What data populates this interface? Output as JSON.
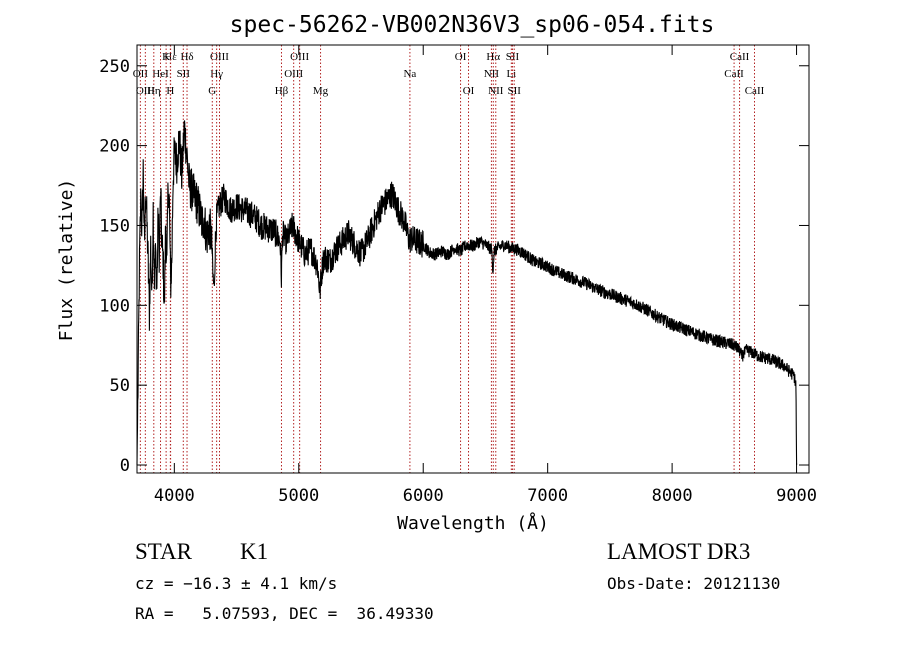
{
  "chart_data": {
    "type": "line",
    "title": "spec-56262-VB002N36V3_sp06-054.fits",
    "xlabel": "Wavelength (Å)",
    "ylabel": "Flux (relative)",
    "xlim": [
      3700,
      9100
    ],
    "ylim": [
      -5,
      263
    ],
    "xticks": [
      4000,
      5000,
      6000,
      7000,
      8000,
      9000
    ],
    "yticks": [
      0,
      50,
      100,
      150,
      200,
      250
    ],
    "xtick_labels": [
      "4000",
      "5000",
      "6000",
      "7000",
      "8000",
      "9000"
    ],
    "ytick_labels": [
      "0",
      "50",
      "100",
      "150",
      "200",
      "250"
    ],
    "series": [
      {
        "name": "flux",
        "x": [
          3700,
          3710,
          3720,
          3730,
          3740,
          3750,
          3760,
          3770,
          3780,
          3790,
          3800,
          3810,
          3820,
          3830,
          3840,
          3850,
          3860,
          3870,
          3880,
          3890,
          3900,
          3910,
          3920,
          3930,
          3940,
          3950,
          3960,
          3970,
          3980,
          3990,
          4000,
          4020,
          4040,
          4060,
          4080,
          4100,
          4120,
          4140,
          4160,
          4180,
          4200,
          4220,
          4240,
          4260,
          4280,
          4300,
          4310,
          4320,
          4330,
          4340,
          4360,
          4380,
          4400,
          4450,
          4500,
          4550,
          4600,
          4650,
          4700,
          4750,
          4800,
          4850,
          4860,
          4870,
          4900,
          4950,
          5000,
          5050,
          5100,
          5150,
          5170,
          5180,
          5200,
          5250,
          5300,
          5350,
          5400,
          5450,
          5500,
          5550,
          5600,
          5650,
          5700,
          5750,
          5800,
          5850,
          5890,
          5900,
          5950,
          6000,
          6050,
          6100,
          6150,
          6200,
          6250,
          6300,
          6350,
          6400,
          6450,
          6500,
          6550,
          6560,
          6570,
          6600,
          6650,
          6700,
          6750,
          6800,
          6850,
          6900,
          6950,
          7000,
          7100,
          7200,
          7300,
          7400,
          7500,
          7600,
          7700,
          7800,
          7900,
          8000,
          8100,
          8200,
          8300,
          8400,
          8500,
          8540,
          8560,
          8600,
          8650,
          8700,
          8750,
          8800,
          8850,
          8900,
          8950,
          8980,
          8995,
          9000
        ],
        "y": [
          0,
          60,
          125,
          165,
          148,
          185,
          135,
          175,
          150,
          125,
          95,
          138,
          105,
          160,
          118,
          132,
          110,
          158,
          128,
          172,
          138,
          128,
          96,
          152,
          122,
          178,
          162,
          112,
          128,
          180,
          195,
          190,
          205,
          180,
          212,
          195,
          175,
          172,
          168,
          165,
          160,
          152,
          155,
          142,
          150,
          142,
          118,
          110,
          140,
          155,
          162,
          165,
          168,
          160,
          162,
          160,
          158,
          155,
          150,
          148,
          147,
          140,
          118,
          145,
          140,
          150,
          140,
          132,
          135,
          125,
          108,
          118,
          130,
          128,
          135,
          140,
          145,
          138,
          132,
          140,
          150,
          160,
          165,
          170,
          160,
          152,
          140,
          142,
          140,
          138,
          133,
          132,
          134,
          132,
          136,
          134,
          138,
          137,
          140,
          138,
          135,
          122,
          134,
          136,
          138,
          136,
          135,
          133,
          130,
          127,
          126,
          124,
          120,
          117,
          114,
          110,
          107,
          104,
          101,
          97,
          92,
          88,
          85,
          82,
          79,
          77,
          75,
          72,
          68,
          72,
          70,
          68,
          67,
          66,
          64,
          62,
          58,
          56,
          50,
          0
        ]
      }
    ],
    "lines": [
      {
        "name": "Hε",
        "x": 3970,
        "label": "Hε",
        "row": 1
      },
      {
        "name": "K",
        "x": 3934,
        "label": "K",
        "row": 1
      },
      {
        "name": "Hδ",
        "x": 4102,
        "label": "Hδ",
        "row": 1
      },
      {
        "name": "OIII-a",
        "x": 4363,
        "label": "OIII",
        "row": 1
      },
      {
        "name": "OIII-b",
        "x": 5007,
        "label": "OIII",
        "row": 1
      },
      {
        "name": "OI-a",
        "x": 6300,
        "label": "OI",
        "row": 1
      },
      {
        "name": "Hα",
        "x": 6563,
        "label": "Hα",
        "row": 1
      },
      {
        "name": "SII-a",
        "x": 6717,
        "label": "SII",
        "row": 1
      },
      {
        "name": "CaII-a",
        "x": 8542,
        "label": "CaII",
        "row": 1
      },
      {
        "name": "OII",
        "x": 3727,
        "label": "OII",
        "row": 2
      },
      {
        "name": "HeI",
        "x": 3889,
        "label": "HeI",
        "row": 2
      },
      {
        "name": "SII-b",
        "x": 4072,
        "label": "SII",
        "row": 2
      },
      {
        "name": "Hγ",
        "x": 4340,
        "label": "Hγ",
        "row": 2
      },
      {
        "name": "OIII-c",
        "x": 4959,
        "label": "OIII",
        "row": 2
      },
      {
        "name": "Na",
        "x": 5893,
        "label": "Na",
        "row": 2
      },
      {
        "name": "NII-a",
        "x": 6548,
        "label": "NII",
        "row": 2
      },
      {
        "name": "Li",
        "x": 6708,
        "label": "Li",
        "row": 2
      },
      {
        "name": "CaII-b",
        "x": 8498,
        "label": "CaII",
        "row": 2
      },
      {
        "name": "OIII-d",
        "x": 3767,
        "label": "OIII",
        "row": 3
      },
      {
        "name": "Hη",
        "x": 3835,
        "label": "Hη",
        "row": 3
      },
      {
        "name": "H",
        "x": 3968,
        "label": "H",
        "row": 3
      },
      {
        "name": "G",
        "x": 4305,
        "label": "G",
        "row": 3
      },
      {
        "name": "Hβ",
        "x": 4861,
        "label": "Hβ",
        "row": 3
      },
      {
        "name": "Mg",
        "x": 5175,
        "label": "Mg",
        "row": 3
      },
      {
        "name": "OI-b",
        "x": 6364,
        "label": "OI",
        "row": 3
      },
      {
        "name": "NII-b",
        "x": 6583,
        "label": "NII",
        "row": 3
      },
      {
        "name": "SII-c",
        "x": 6731,
        "label": "SII",
        "row": 3
      },
      {
        "name": "CaII-c",
        "x": 8662,
        "label": "CaII",
        "row": 3
      }
    ]
  },
  "info": {
    "class": "STAR",
    "subclass": "K1",
    "survey": "LAMOST DR3",
    "cz_line": "cz = −16.3 ± 4.1 km/s",
    "obs_date": "Obs-Date: 20121130",
    "radec": "RA =   5.07593, DEC =  36.49330"
  },
  "colors": {
    "axis": "#000000",
    "spectrum": "#000000",
    "line_marker": "#b22222"
  }
}
